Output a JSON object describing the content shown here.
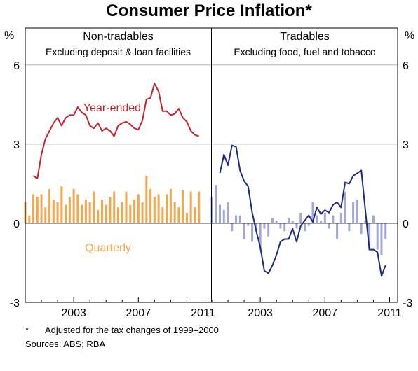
{
  "title": "Consumer Price Inflation*",
  "footnote": {
    "marker": "*",
    "text": "Adjusted for the tax changes of 1999–2000"
  },
  "sources": "Sources: ABS; RBA",
  "colors": {
    "year_ended_left": "#c8232c",
    "quarterly_left": "#f5a64a",
    "year_ended_right": "#1c2b82",
    "quarterly_right": "#a3a6d9",
    "gridline": "#b8b8b8"
  },
  "chart_data": [
    {
      "type": "bar",
      "title": "Non-tradables",
      "subtitle": "Excluding deposit & loan facilities",
      "ylabel": "%",
      "ylim": [
        -3,
        7.4
      ],
      "yticks": [
        -3,
        0,
        3,
        6
      ],
      "xlim": [
        2000.0,
        2011.5
      ],
      "xticks": [
        "2003",
        "2007",
        "2011"
      ],
      "grid": true,
      "series": [
        {
          "name": "Year-ended",
          "type": "line",
          "x": [
            2000.5,
            2000.75,
            2001,
            2001.25,
            2001.5,
            2001.75,
            2002,
            2002.25,
            2002.5,
            2002.75,
            2003,
            2003.25,
            2003.5,
            2003.75,
            2004,
            2004.25,
            2004.5,
            2004.75,
            2005,
            2005.25,
            2005.5,
            2005.75,
            2006,
            2006.25,
            2006.5,
            2006.75,
            2007,
            2007.25,
            2007.5,
            2007.75,
            2008,
            2008.25,
            2008.5,
            2008.75,
            2009,
            2009.25,
            2009.5,
            2009.75,
            2010,
            2010.25,
            2010.5,
            2010.75
          ],
          "values": [
            1.8,
            1.7,
            2.6,
            3.2,
            3.5,
            3.8,
            4.0,
            3.7,
            4.0,
            4.1,
            4.1,
            4.4,
            4.2,
            4.1,
            3.7,
            3.6,
            3.8,
            3.5,
            3.6,
            3.5,
            3.3,
            3.7,
            3.8,
            3.85,
            3.75,
            3.6,
            3.55,
            3.9,
            4.7,
            4.75,
            5.3,
            5.0,
            4.25,
            4.25,
            4.1,
            4.15,
            4.35,
            4.0,
            3.85,
            3.5,
            3.35,
            3.3
          ]
        },
        {
          "name": "Quarterly",
          "type": "bar",
          "x": [
            2000.0,
            2000.25,
            2000.5,
            2000.75,
            2001,
            2001.25,
            2001.5,
            2001.75,
            2002,
            2002.25,
            2002.5,
            2002.75,
            2003,
            2003.25,
            2003.5,
            2003.75,
            2004,
            2004.25,
            2004.5,
            2004.75,
            2005,
            2005.25,
            2005.5,
            2005.75,
            2006,
            2006.25,
            2006.5,
            2006.75,
            2007,
            2007.25,
            2007.5,
            2007.75,
            2008,
            2008.25,
            2008.5,
            2008.75,
            2009,
            2009.25,
            2009.5,
            2009.75,
            2010,
            2010.25,
            2010.5,
            2010.75
          ],
          "values": [
            0.8,
            0.3,
            1.1,
            1.0,
            1.1,
            0.6,
            1.3,
            0.9,
            0.8,
            1.4,
            0.7,
            1.0,
            1.3,
            1.1,
            0.7,
            0.9,
            0.8,
            1.2,
            0.5,
            0.9,
            0.7,
            1.0,
            1.2,
            0.6,
            0.8,
            1.2,
            0.7,
            0.9,
            1.1,
            0.8,
            1.8,
            1.3,
            1.0,
            1.1,
            0.6,
            1.1,
            1.3,
            0.8,
            0.6,
            1.25,
            0.4,
            1.2,
            0.6,
            1.2
          ]
        }
      ],
      "annotations": [
        "Year-ended",
        "Quarterly"
      ]
    },
    {
      "type": "bar",
      "title": "Tradables",
      "subtitle": "Excluding food, fuel and tobacco",
      "ylabel": "%",
      "ylim": [
        -3,
        7.4
      ],
      "yticks": [
        -3,
        0,
        3,
        6
      ],
      "xlim": [
        2000.0,
        2011.5
      ],
      "xticks": [
        "2003",
        "2007",
        "2011"
      ],
      "grid": true,
      "series": [
        {
          "name": "",
          "type": "line",
          "x": [
            2000.5,
            2000.75,
            2001,
            2001.25,
            2001.5,
            2001.75,
            2002,
            2002.25,
            2002.5,
            2002.75,
            2003,
            2003.25,
            2003.5,
            2003.75,
            2004,
            2004.25,
            2004.5,
            2004.75,
            2005,
            2005.25,
            2005.5,
            2005.75,
            2006,
            2006.25,
            2006.5,
            2006.75,
            2007,
            2007.25,
            2007.5,
            2007.75,
            2008,
            2008.25,
            2008.5,
            2008.75,
            2009,
            2009.25,
            2009.5,
            2009.75,
            2010,
            2010.25,
            2010.5,
            2010.75
          ],
          "values": [
            1.9,
            2.6,
            2.2,
            2.95,
            2.9,
            2.0,
            1.6,
            1.4,
            0.4,
            -0.3,
            -0.9,
            -1.8,
            -1.9,
            -1.6,
            -1.2,
            -0.7,
            -0.6,
            -0.6,
            -0.2,
            -0.7,
            -0.1,
            0.1,
            0.3,
            0.05,
            0.6,
            0.35,
            0.5,
            0.4,
            0.7,
            0.8,
            0.6,
            1.55,
            1.5,
            1.8,
            1.9,
            2.0,
            0.5,
            -1.0,
            -1.0,
            -1.1,
            -2.0,
            -1.6
          ]
        },
        {
          "name": "",
          "type": "bar",
          "x": [
            2000.0,
            2000.25,
            2000.5,
            2000.75,
            2001,
            2001.25,
            2001.5,
            2001.75,
            2002,
            2002.25,
            2002.5,
            2002.75,
            2003,
            2003.25,
            2003.5,
            2003.75,
            2004,
            2004.25,
            2004.5,
            2004.75,
            2005,
            2005.25,
            2005.5,
            2005.75,
            2006,
            2006.25,
            2006.5,
            2006.75,
            2007,
            2007.25,
            2007.5,
            2007.75,
            2008,
            2008.25,
            2008.5,
            2008.75,
            2009,
            2009.25,
            2009.5,
            2009.75,
            2010,
            2010.25,
            2010.5,
            2010.75
          ],
          "values": [
            1.0,
            1.45,
            0.7,
            0.5,
            0.8,
            -0.3,
            0.3,
            0.3,
            -0.6,
            -0.1,
            -0.7,
            -0.3,
            -1.0,
            -0.2,
            -0.5,
            0.2,
            0.1,
            -0.2,
            -0.3,
            0.2,
            0.1,
            -0.2,
            0.4,
            -0.3,
            -0.1,
            0.8,
            0.3,
            0.1,
            0.4,
            -0.2,
            0.3,
            -0.6,
            0.4,
            1.2,
            -0.3,
            0.8,
            0.9,
            -0.4,
            0.1,
            -1.0,
            0.3,
            -1.0,
            -1.2,
            -0.6
          ]
        }
      ],
      "annotations": []
    }
  ]
}
